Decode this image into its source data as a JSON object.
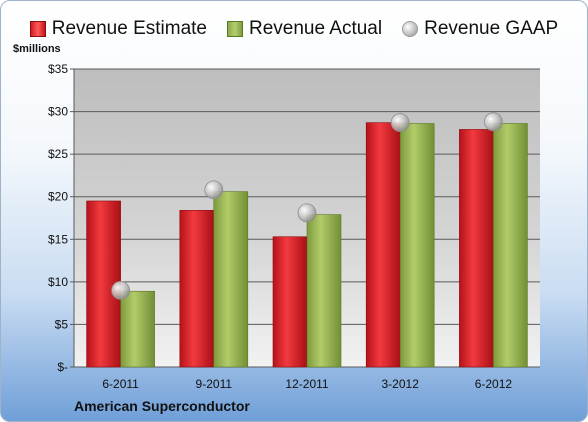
{
  "legend": {
    "estimate_label": "Revenue Estimate",
    "actual_label": "Revenue Actual",
    "gaap_label": "Revenue GAAP"
  },
  "colors": {
    "estimate": "#d81f26",
    "actual": "#9ab85a",
    "gaap": "#b8b8b8",
    "plot_bg": "#c0c0c0"
  },
  "chart_data": {
    "type": "bar",
    "title": "",
    "subtitle": "American Superconductor",
    "ylabel": "$millions",
    "xlabel": "",
    "ylim": [
      0,
      35
    ],
    "y_ticks": [
      0,
      5,
      10,
      15,
      20,
      25,
      30,
      35
    ],
    "y_tick_labels": [
      "$-",
      "$5",
      "$10",
      "$15",
      "$20",
      "$25",
      "$30",
      "$35"
    ],
    "grid": true,
    "legend_position": "top",
    "categories": [
      "6-2011",
      "9-2011",
      "12-2011",
      "3-2012",
      "6-2012"
    ],
    "series": [
      {
        "name": "Revenue Estimate",
        "kind": "bar",
        "values": [
          19.5,
          18.4,
          15.3,
          28.7,
          27.9
        ]
      },
      {
        "name": "Revenue Actual",
        "kind": "bar",
        "values": [
          8.9,
          20.6,
          17.9,
          28.6,
          28.6
        ]
      },
      {
        "name": "Revenue GAAP",
        "kind": "marker",
        "values": [
          9.0,
          20.8,
          18.1,
          28.7,
          28.8
        ]
      }
    ]
  }
}
